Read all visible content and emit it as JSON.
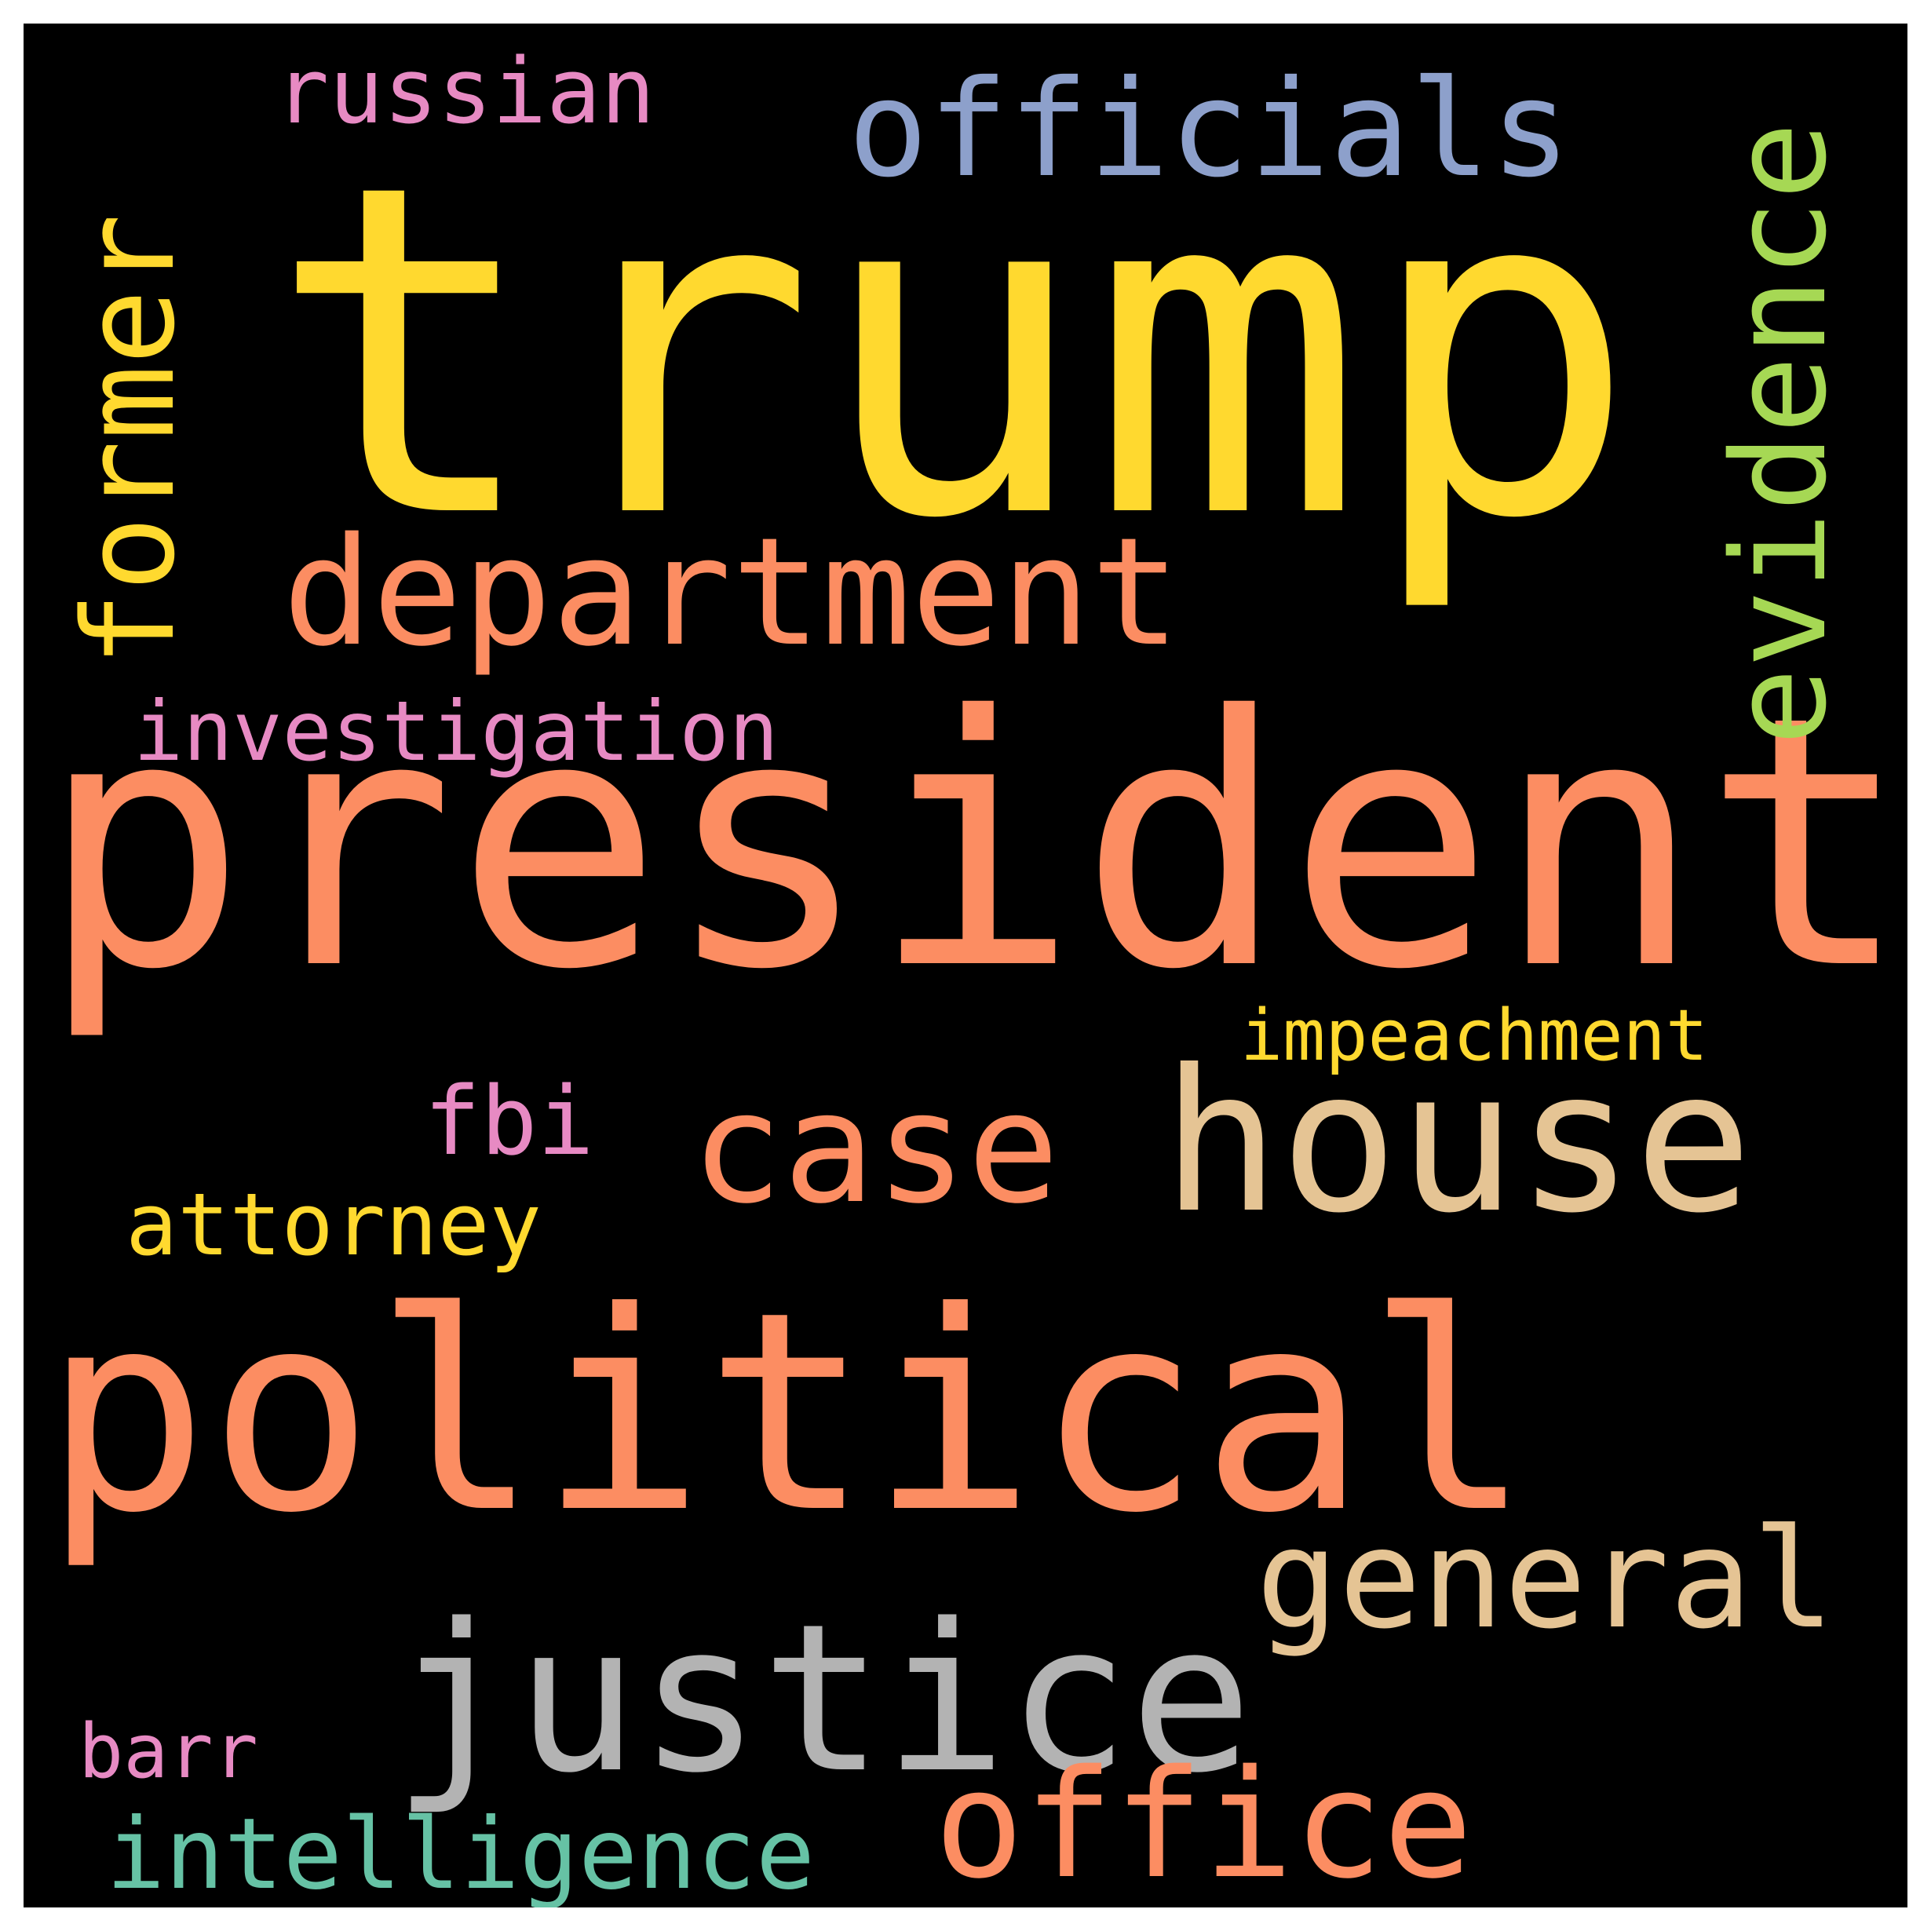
{
  "words": [
    {
      "key": "trump",
      "text": "trump",
      "color": "#FFD92F"
    },
    {
      "key": "president",
      "text": "president",
      "color": "#FC8D62"
    },
    {
      "key": "political",
      "text": "political",
      "color": "#FC8D62"
    },
    {
      "key": "justice",
      "text": "justice",
      "color": "#B3B3B3"
    },
    {
      "key": "house",
      "text": "house",
      "color": "#E5C494"
    },
    {
      "key": "department",
      "text": "department",
      "color": "#FC8D62"
    },
    {
      "key": "officials",
      "text": "officials",
      "color": "#8DA0CB"
    },
    {
      "key": "case",
      "text": "case",
      "color": "#FC8D62"
    },
    {
      "key": "general",
      "text": "general",
      "color": "#E5C494"
    },
    {
      "key": "office",
      "text": "office",
      "color": "#FC8D62"
    },
    {
      "key": "former",
      "text": "former",
      "color": "#FFD92F"
    },
    {
      "key": "evidence",
      "text": "evidence",
      "color": "#A6D854"
    },
    {
      "key": "investigation",
      "text": "investigation",
      "color": "#E78AC3"
    },
    {
      "key": "russian",
      "text": "russian",
      "color": "#E78AC3"
    },
    {
      "key": "impeachment",
      "text": "impeachment",
      "color": "#FFD92F"
    },
    {
      "key": "attorney",
      "text": "attorney",
      "color": "#FFD92F"
    },
    {
      "key": "fbi",
      "text": "fbi",
      "color": "#E78AC3"
    },
    {
      "key": "intelligence",
      "text": "intelligence",
      "color": "#66C2A5"
    },
    {
      "key": "barr",
      "text": "barr",
      "color": "#E78AC3"
    }
  ]
}
